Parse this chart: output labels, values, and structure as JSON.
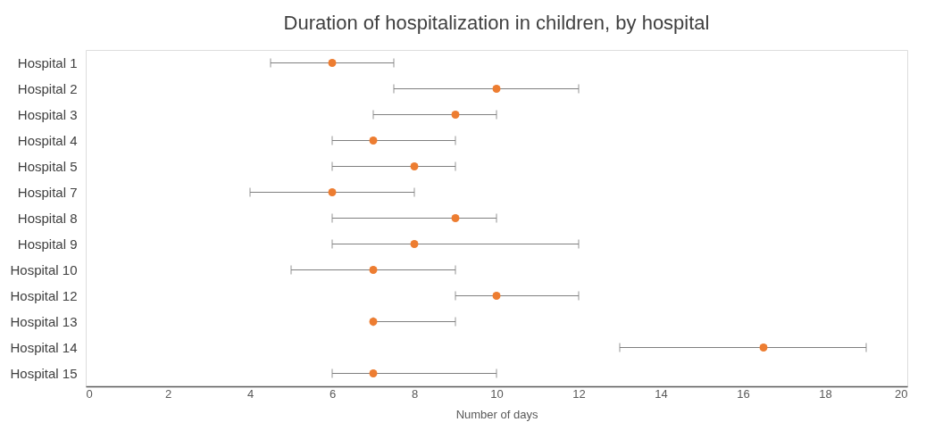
{
  "chart_data": {
    "type": "scatter",
    "orientation": "horizontal",
    "title": "Duration of hospitalization in children, by hospital",
    "xlabel": "Number of days",
    "categories": [
      "Hospital 1",
      "Hospital 2",
      "Hospital 3",
      "Hospital 4",
      "Hospital 5",
      "Hospital 7",
      "Hospital 8",
      "Hospital 9",
      "Hospital 10",
      "Hospital 12",
      "Hospital 13",
      "Hospital 14",
      "Hospital 15"
    ],
    "values": [
      6,
      10,
      9,
      7,
      8,
      6,
      9,
      8,
      7,
      10,
      7,
      16.5,
      7
    ],
    "errors": [
      [
        4.5,
        7.5
      ],
      [
        7.5,
        12
      ],
      [
        7,
        10
      ],
      [
        6,
        9
      ],
      [
        6,
        9
      ],
      [
        4,
        8
      ],
      [
        6,
        10
      ],
      [
        6,
        12
      ],
      [
        5,
        9
      ],
      [
        9,
        12
      ],
      [
        7,
        9
      ],
      [
        13,
        19
      ],
      [
        6,
        10
      ]
    ],
    "color": "#ed7d31",
    "marker": "circle",
    "grid": false,
    "xlim": [
      0,
      20
    ],
    "xticks": [
      0,
      2,
      4,
      6,
      8,
      10,
      12,
      14,
      16,
      18,
      20
    ]
  }
}
